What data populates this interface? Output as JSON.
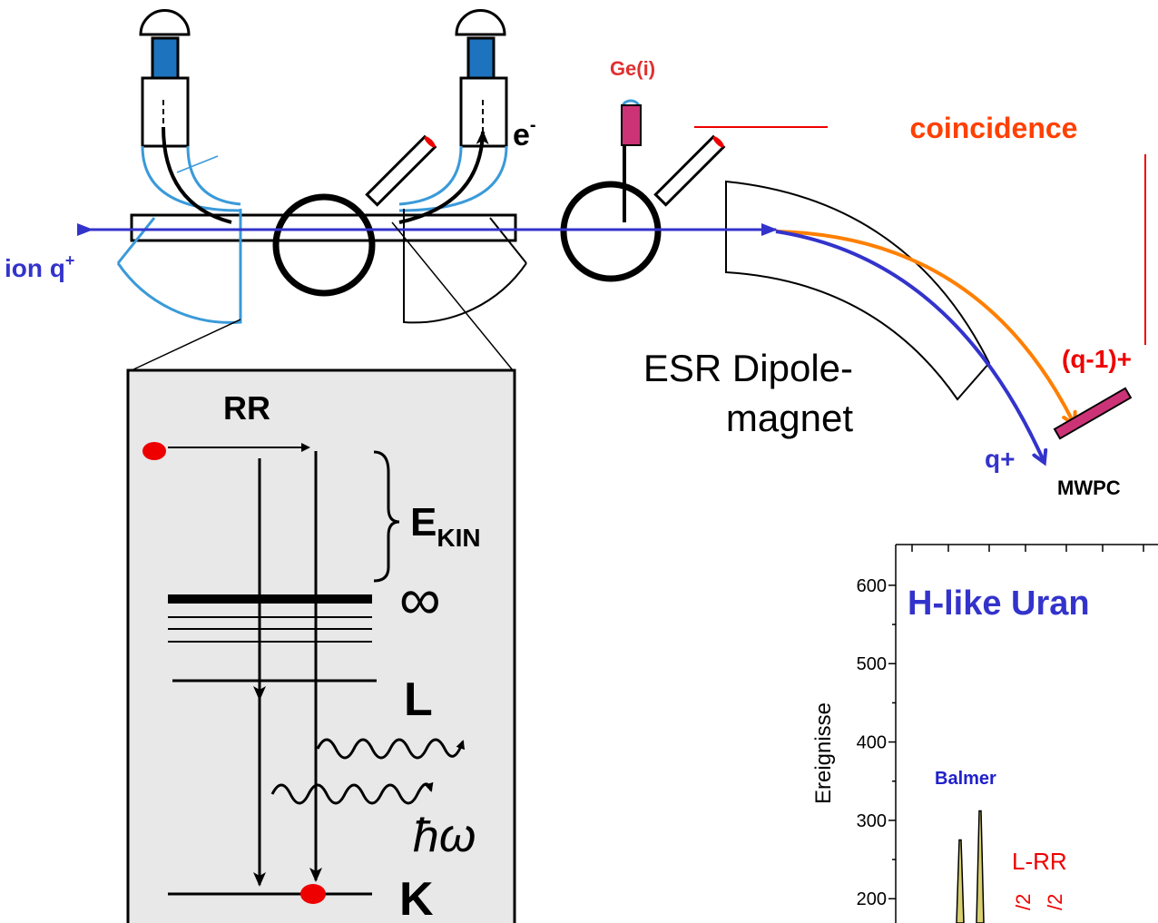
{
  "labels": {
    "detector": "Ge(i)",
    "coincidence": "coincidence",
    "electron": {
      "symbol": "e",
      "charge": "-"
    },
    "ion": {
      "name": "ion q",
      "charge": "+"
    },
    "magnet": [
      "ESR Dipole-",
      "magnet"
    ],
    "charge_down": "(q-1)+",
    "charge_same": "q+",
    "mwpc": "MWPC"
  },
  "inset": {
    "process": "RR",
    "energy": {
      "symbol": "E",
      "subscript": "KIN"
    },
    "continuum": "∞",
    "shell_l": "L",
    "photon": "ħω",
    "shell_k": "K"
  },
  "spectrum": {
    "title": "H-like Uran",
    "y_label": "Ereignisse",
    "ylim": [
      169,
      652
    ],
    "yticks": [
      200,
      300,
      400,
      500,
      600
    ],
    "series_label": "Balmer",
    "peak_label": "L-RR",
    "fine_labels": [
      "/2",
      "/2"
    ],
    "peaks": [
      275,
      312
    ]
  }
}
